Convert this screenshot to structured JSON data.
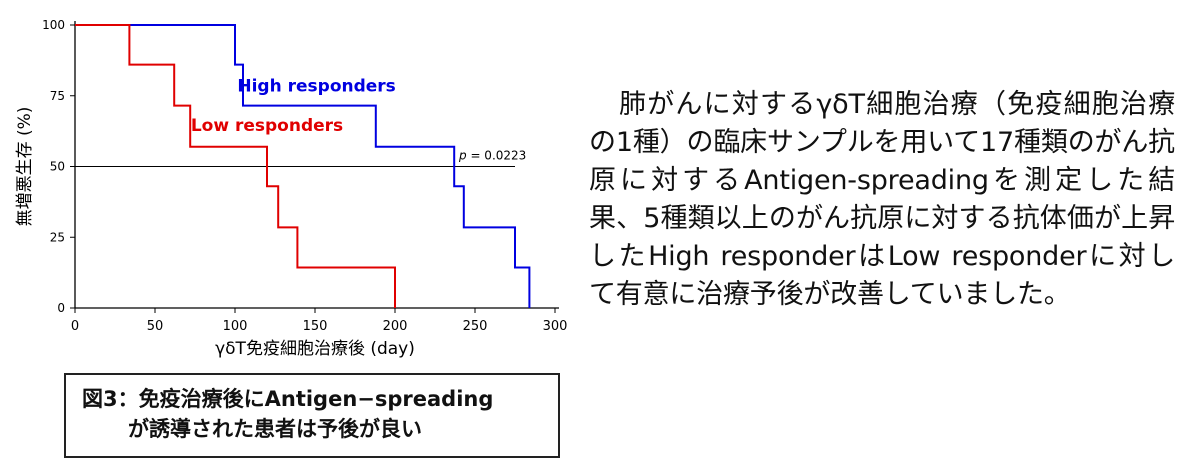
{
  "chart_data": {
    "type": "line",
    "step": true,
    "xlabel": "γδT免疫細胞治療後 (day)",
    "ylabel": "無増悪生存 (%)",
    "xlim": [
      0,
      300
    ],
    "ylim": [
      0,
      100
    ],
    "xticks": [
      0,
      50,
      100,
      150,
      200,
      250,
      300
    ],
    "yticks": [
      0,
      25,
      50,
      75,
      100
    ],
    "reference_line": 50,
    "series": [
      {
        "name": "High responders",
        "color": "#0000e0",
        "points": [
          [
            0,
            100
          ],
          [
            100,
            100
          ],
          [
            100,
            86
          ],
          [
            105,
            86
          ],
          [
            105,
            71.5
          ],
          [
            188,
            71.5
          ],
          [
            188,
            57
          ],
          [
            237,
            57
          ],
          [
            237,
            43
          ],
          [
            243,
            43
          ],
          [
            243,
            28.5
          ],
          [
            275,
            28.5
          ],
          [
            275,
            14.3
          ],
          [
            284,
            14.3
          ],
          [
            284,
            0
          ]
        ]
      },
      {
        "name": "Low responders",
        "color": "#e00000",
        "points": [
          [
            0,
            100
          ],
          [
            34,
            100
          ],
          [
            34,
            86
          ],
          [
            62,
            86
          ],
          [
            62,
            71.5
          ],
          [
            72,
            71.5
          ],
          [
            72,
            57
          ],
          [
            120,
            57
          ],
          [
            120,
            43
          ],
          [
            127,
            43
          ],
          [
            127,
            28.5
          ],
          [
            139,
            28.5
          ],
          [
            139,
            14.3
          ],
          [
            200,
            14.3
          ],
          [
            200,
            0
          ]
        ]
      }
    ],
    "annotation": {
      "p_label": "p",
      "p_value": "= 0.0223"
    }
  },
  "caption": {
    "line1": "図3：免疫治療後にAntigen−spreading",
    "line2": "が誘導された患者は予後が良い"
  },
  "body": {
    "paragraph_first": "肺がんに対するγδT細胞治療（免疫細胞治療の1種）の臨床サンプルを用いて17種類のがん抗原に対するAntigen-spreadingを測定した結果、5種類以上のがん抗原に対する抗体価が上昇したHigh responderはLow responderに対して有意に治療予後が改善していました。"
  }
}
